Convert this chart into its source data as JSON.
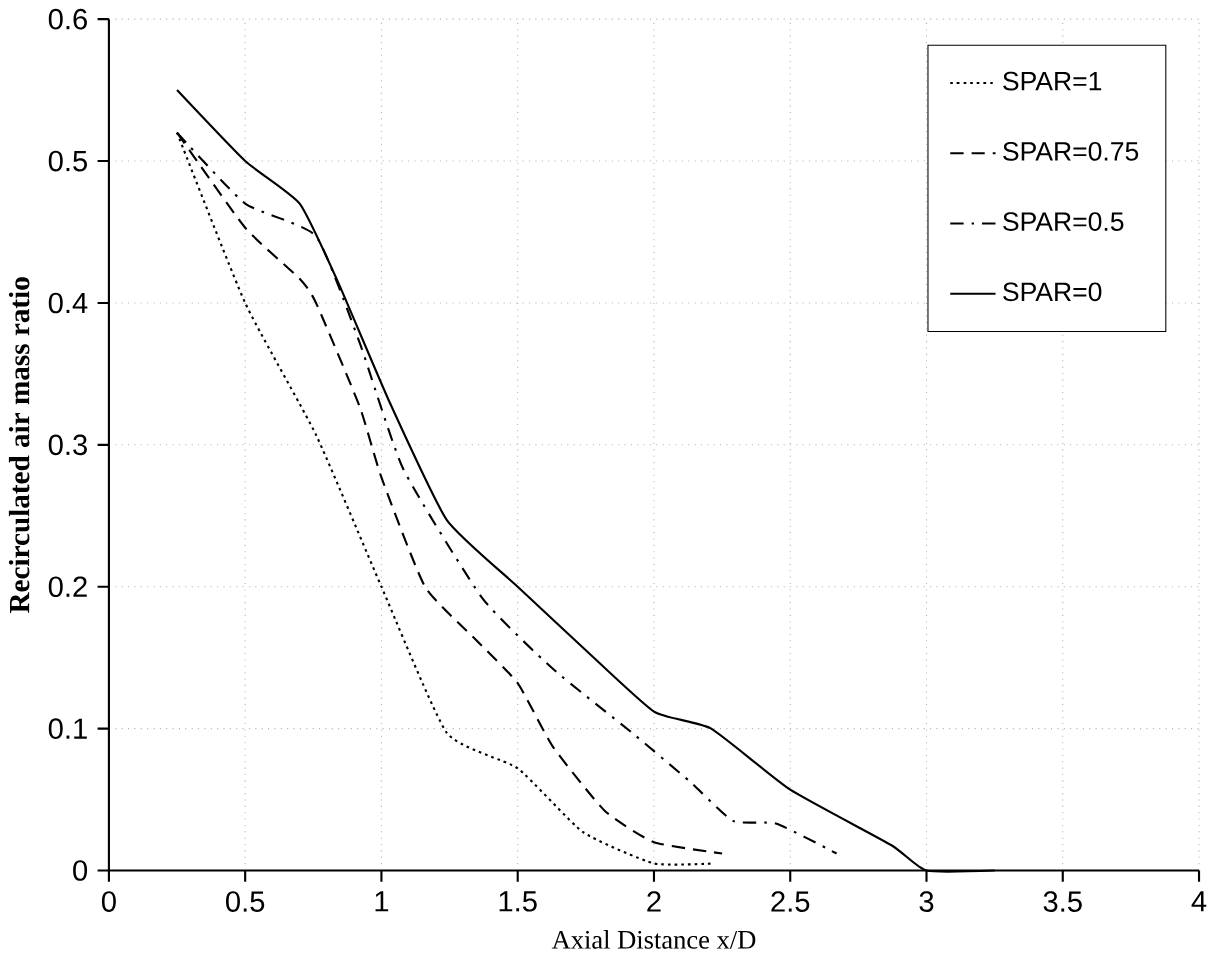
{
  "chart_data": {
    "type": "line",
    "xlabel": "Axial Distance x/D",
    "ylabel": "Recirculated  air mass ratio",
    "xlim": [
      0,
      4
    ],
    "ylim": [
      0,
      0.6
    ],
    "xticks": [
      0,
      0.5,
      1,
      1.5,
      2,
      2.5,
      3,
      3.5,
      4
    ],
    "yticks": [
      0,
      0.1,
      0.2,
      0.3,
      0.4,
      0.5,
      0.6
    ],
    "grid": true,
    "legend": "top right",
    "marker": "none",
    "series": [
      {
        "name": "SPAR=1",
        "color": "#000000",
        "line_style": "dotted",
        "x": [
          0.25,
          0.5,
          0.76,
          1.0,
          1.24,
          1.5,
          1.74,
          2.0,
          2.22
        ],
        "values": [
          0.52,
          0.4,
          0.307,
          0.2,
          0.097,
          0.072,
          0.027,
          0.005,
          0.005
        ]
      },
      {
        "name": "SPAR=0.75",
        "color": "#000000",
        "line_style": "dashed",
        "x": [
          0.25,
          0.5,
          0.7,
          0.76,
          0.92,
          1.0,
          1.16,
          1.35,
          1.5,
          1.63,
          1.82,
          2.0,
          2.25
        ],
        "values": [
          0.52,
          0.453,
          0.417,
          0.4,
          0.327,
          0.277,
          0.2,
          0.162,
          0.132,
          0.087,
          0.042,
          0.02,
          0.012
        ]
      },
      {
        "name": "SPAR=0.5",
        "color": "#000000",
        "line_style": "dashdot",
        "x": [
          0.25,
          0.5,
          0.76,
          0.92,
          1.08,
          1.37,
          1.63,
          1.92,
          2.13,
          2.29,
          2.45,
          2.67
        ],
        "values": [
          0.52,
          0.47,
          0.447,
          0.372,
          0.283,
          0.192,
          0.142,
          0.097,
          0.063,
          0.035,
          0.033,
          0.012
        ]
      },
      {
        "name": "SPAR=0",
        "color": "#000000",
        "line_style": "solid",
        "x": [
          0.25,
          0.5,
          0.7,
          0.84,
          1.03,
          1.24,
          1.5,
          1.74,
          2.0,
          2.21,
          2.5,
          2.87,
          3.0,
          3.25
        ],
        "values": [
          0.55,
          0.5,
          0.47,
          0.415,
          0.33,
          0.247,
          0.2,
          0.157,
          0.112,
          0.1,
          0.057,
          0.018,
          0,
          0
        ]
      }
    ]
  }
}
